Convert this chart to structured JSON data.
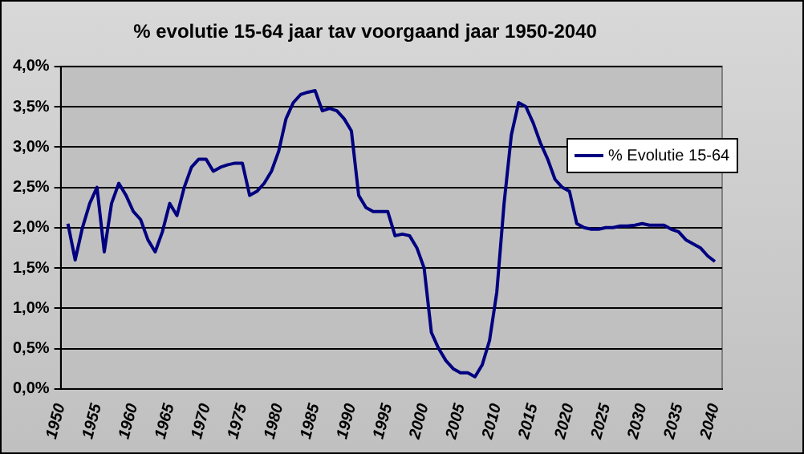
{
  "chart_data": {
    "type": "line",
    "title": "% evolutie 15-64 jaar tav voorgaand jaar 1950-2040",
    "x": [
      1951,
      1952,
      1953,
      1954,
      1955,
      1956,
      1957,
      1958,
      1959,
      1960,
      1961,
      1962,
      1963,
      1964,
      1965,
      1966,
      1967,
      1968,
      1969,
      1970,
      1971,
      1972,
      1973,
      1974,
      1975,
      1976,
      1977,
      1978,
      1979,
      1980,
      1981,
      1982,
      1983,
      1984,
      1985,
      1986,
      1987,
      1988,
      1989,
      1990,
      1991,
      1992,
      1993,
      1994,
      1995,
      1996,
      1997,
      1998,
      1999,
      2000,
      2001,
      2002,
      2003,
      2004,
      2005,
      2006,
      2007,
      2008,
      2009,
      2010,
      2011,
      2012,
      2013,
      2014,
      2015,
      2016,
      2017,
      2018,
      2019,
      2020,
      2021,
      2022,
      2023,
      2024,
      2025,
      2026,
      2027,
      2028,
      2029,
      2030,
      2031,
      2032,
      2033,
      2034,
      2035,
      2036,
      2037,
      2038,
      2039,
      2040
    ],
    "series": [
      {
        "name": "% Evolutie 15-64",
        "color": "#000080",
        "values": [
          2.05,
          1.6,
          2.0,
          2.3,
          2.5,
          1.7,
          2.3,
          2.55,
          2.4,
          2.2,
          2.1,
          1.85,
          1.7,
          1.95,
          2.3,
          2.15,
          2.5,
          2.75,
          2.85,
          2.85,
          2.7,
          2.75,
          2.78,
          2.8,
          2.8,
          2.4,
          2.45,
          2.55,
          2.7,
          2.95,
          3.35,
          3.55,
          3.65,
          3.68,
          3.7,
          3.45,
          3.48,
          3.45,
          3.35,
          3.2,
          2.4,
          2.25,
          2.2,
          2.2,
          2.2,
          1.9,
          1.92,
          1.9,
          1.75,
          1.5,
          0.7,
          0.5,
          0.35,
          0.25,
          0.2,
          0.2,
          0.15,
          0.3,
          0.6,
          1.2,
          2.3,
          3.15,
          3.55,
          3.5,
          3.3,
          3.05,
          2.85,
          2.6,
          2.5,
          2.45,
          2.05,
          2.0,
          1.98,
          1.98,
          2.0,
          2.0,
          2.02,
          2.02,
          2.03,
          2.05,
          2.03,
          2.03,
          2.03,
          1.98,
          1.95,
          1.85,
          1.8,
          1.75,
          1.65,
          1.58
        ]
      }
    ],
    "xlim": [
      1950,
      2041
    ],
    "xticks": [
      1950,
      1955,
      1960,
      1965,
      1970,
      1975,
      1980,
      1985,
      1990,
      1995,
      2000,
      2005,
      2010,
      2015,
      2020,
      2025,
      2030,
      2035,
      2040
    ],
    "ylim": [
      0,
      4
    ],
    "yticks": [
      {
        "value": 0,
        "label": "0,0%"
      },
      {
        "value": 0.5,
        "label": "0,5%"
      },
      {
        "value": 1,
        "label": "1,0%"
      },
      {
        "value": 1.5,
        "label": "1,5%"
      },
      {
        "value": 2,
        "label": "2,0%"
      },
      {
        "value": 2.5,
        "label": "2,5%"
      },
      {
        "value": 3,
        "label": "3,0%"
      },
      {
        "value": 3.5,
        "label": "3,5%"
      },
      {
        "value": 4,
        "label": "4,0%"
      }
    ],
    "grid": "y",
    "legend": "right",
    "marker": "none",
    "line_style": "solid"
  }
}
